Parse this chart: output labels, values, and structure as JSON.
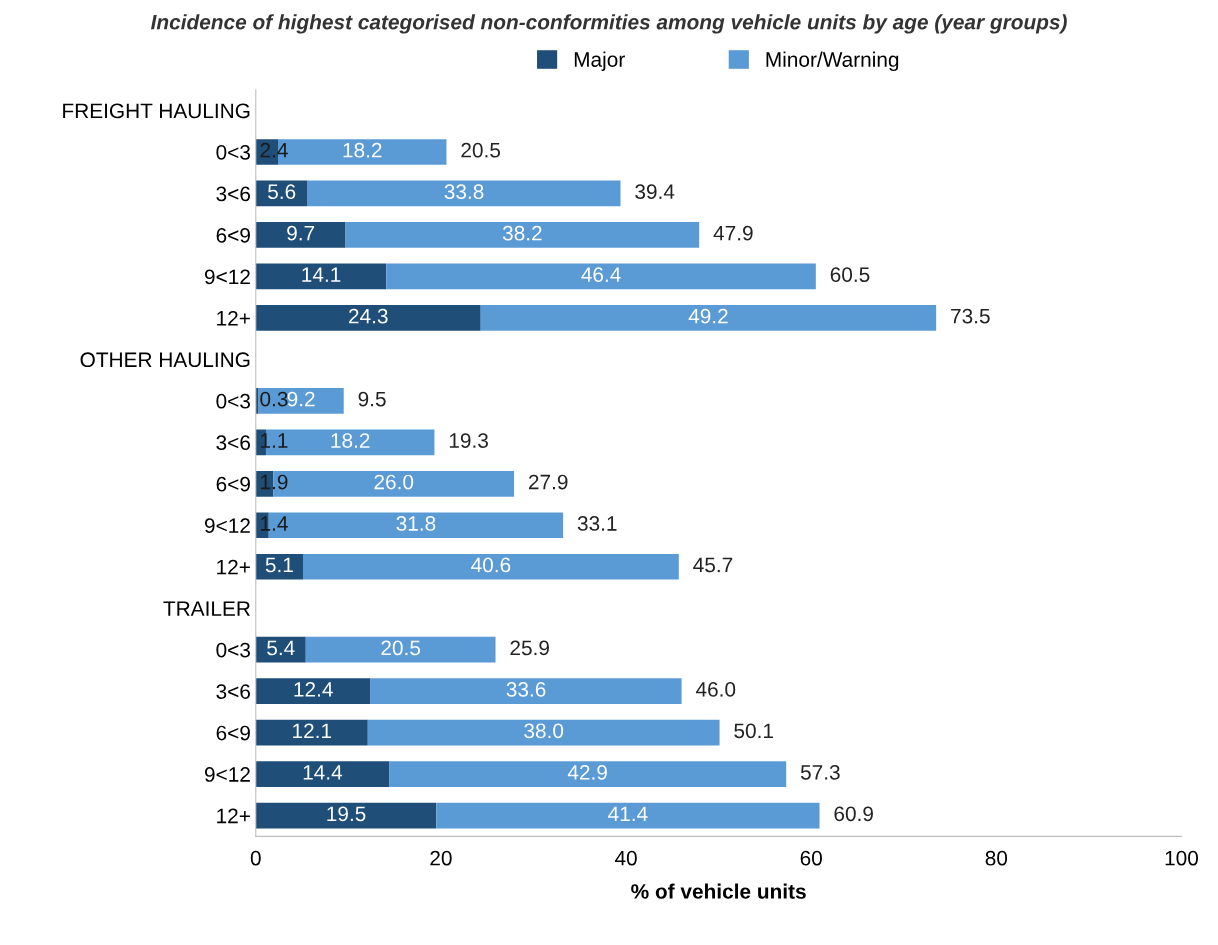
{
  "chart_data": {
    "type": "bar",
    "orientation": "horizontal",
    "stacked": true,
    "title": "Incidence of highest categorised non-conformities among vehicle units by age (year groups)",
    "xlabel": "% of vehicle units",
    "categories": [
      "FREIGHT HAULING",
      "0<3",
      "3<6",
      "6<9",
      "9<12",
      "12+",
      "OTHER HAULING",
      "0<3",
      "3<6",
      "6<9",
      "9<12",
      "12+",
      "TRAILER",
      "0<3",
      "3<6",
      "6<9",
      "9<12",
      "12+"
    ],
    "series": [
      {
        "name": "Major",
        "color": "#1f4e79",
        "values": [
          null,
          2.4,
          5.6,
          9.7,
          14.1,
          24.3,
          null,
          0.3,
          1.1,
          1.9,
          1.4,
          5.1,
          null,
          5.4,
          12.4,
          12.1,
          14.4,
          19.5
        ],
        "value_labels": [
          null,
          "2.4",
          "5.6",
          "9.7",
          "14.1",
          "24.3",
          null,
          "0.3",
          "1.1",
          "1.9",
          "1.4",
          "5.1",
          null,
          "5.4",
          "12.4",
          "12.1",
          "14.4",
          "19.5"
        ]
      },
      {
        "name": "Minor/Warning",
        "color": "#5b9bd5",
        "values": [
          null,
          18.2,
          33.8,
          38.2,
          46.4,
          49.2,
          null,
          9.2,
          18.2,
          26.0,
          31.8,
          40.6,
          null,
          20.5,
          33.6,
          38.0,
          42.9,
          41.4
        ],
        "value_labels": [
          null,
          "18.2",
          "33.8",
          "38.2",
          "46.4",
          "49.2",
          null,
          "9.2",
          "18.2",
          "26.0",
          "31.8",
          "40.6",
          null,
          "20.5",
          "33.6",
          "38.0",
          "42.9",
          "41.4"
        ]
      }
    ],
    "totals": [
      null,
      "20.5",
      "39.4",
      "47.9",
      "60.5",
      "73.5",
      null,
      "9.5",
      "19.3",
      "27.9",
      "33.1",
      "45.7",
      null,
      "25.9",
      "46.0",
      "50.1",
      "57.3",
      "60.9"
    ],
    "xlim": [
      0,
      100
    ],
    "xticks": [
      0,
      20,
      40,
      60,
      80,
      100
    ],
    "grid": false,
    "legend": "top"
  }
}
